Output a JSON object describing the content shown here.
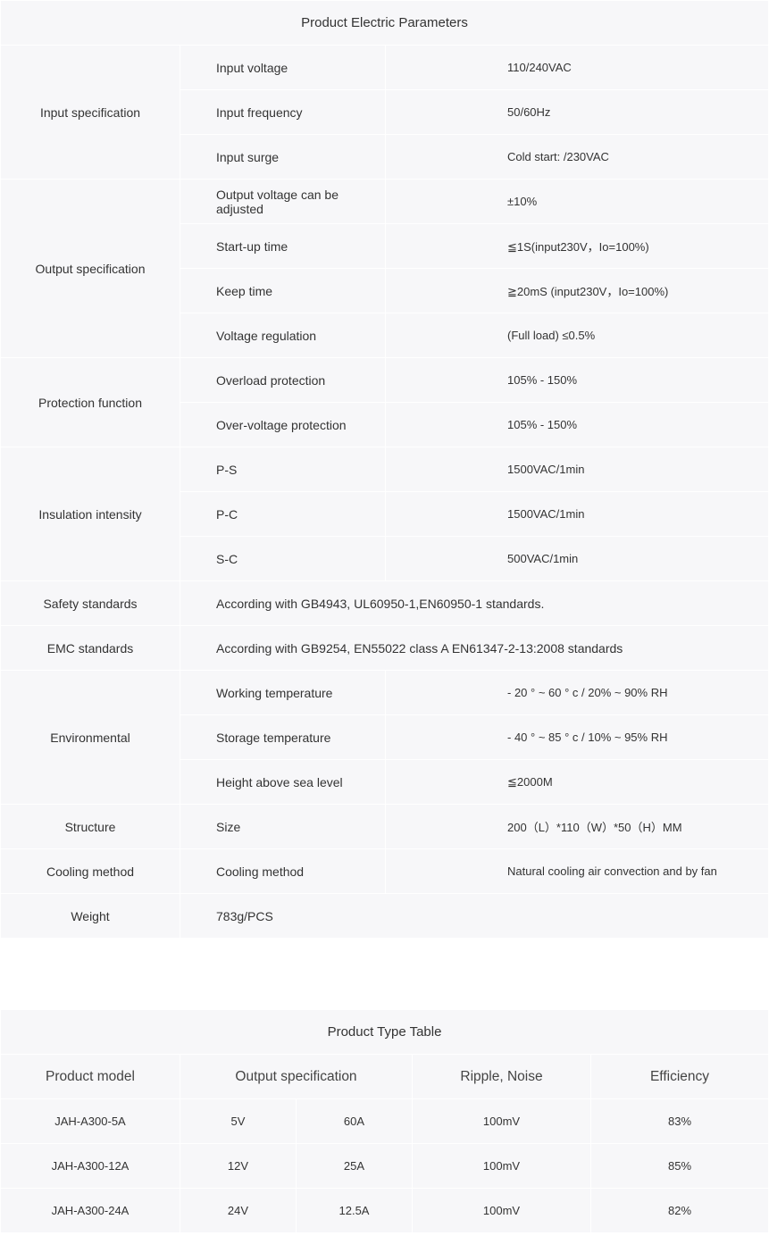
{
  "params": {
    "title": "Product Electric Parameters",
    "groups": [
      {
        "name": "Input specification",
        "rows": [
          [
            "Input voltage",
            "110/240VAC"
          ],
          [
            "Input frequency",
            "50/60Hz"
          ],
          [
            "Input surge",
            "Cold start: /230VAC"
          ]
        ]
      },
      {
        "name": "Output specification",
        "rows": [
          [
            "Output voltage can be adjusted",
            "±10%"
          ],
          [
            "Start-up time",
            "≦1S(input230V，Io=100%)"
          ],
          [
            "Keep time",
            "≧20mS (input230V，Io=100%)"
          ],
          [
            "Voltage regulation",
            "(Full load) ≤0.5%"
          ]
        ]
      },
      {
        "name": "Protection function",
        "rows": [
          [
            "Overload protection",
            "105% - 150%"
          ],
          [
            "Over-voltage protection",
            "105% - 150%"
          ]
        ]
      },
      {
        "name": "Insulation intensity",
        "rows": [
          [
            "P-S",
            "1500VAC/1min"
          ],
          [
            "P-C",
            "1500VAC/1min"
          ],
          [
            "S-C",
            "500VAC/1min"
          ]
        ]
      },
      {
        "name": "Safety standards",
        "full": "According with GB4943, UL60950-1,EN60950-1 standards."
      },
      {
        "name": "EMC standards",
        "full": "According with GB9254, EN55022 class A EN61347-2-13:2008 standards"
      },
      {
        "name": "Environmental",
        "rows": [
          [
            "Working temperature",
            "- 20 ° ~ 60 ° c / 20% ~ 90% RH"
          ],
          [
            "Storage temperature",
            "- 40 ° ~ 85 ° c / 10% ~ 95% RH"
          ],
          [
            "Height above sea level",
            "≦2000M"
          ]
        ]
      },
      {
        "name": "Structure",
        "rows": [
          [
            "Size",
            "200（L）*110（W）*50（H）MM"
          ]
        ]
      },
      {
        "name": "Cooling method",
        "rows": [
          [
            "Cooling method",
            "Natural cooling air convection and by fan"
          ]
        ]
      },
      {
        "name": "Weight",
        "full": "783g/PCS"
      }
    ]
  },
  "types": {
    "title": "Product Type Table",
    "headers": [
      "Product model",
      "Output specification",
      "Ripple, Noise",
      "Efficiency"
    ],
    "rows": [
      [
        "JAH-A300-5A",
        "5V",
        "60A",
        "100mV",
        "83%"
      ],
      [
        "JAH-A300-12A",
        "12V",
        "25A",
        "100mV",
        "85%"
      ],
      [
        "JAH-A300-24A",
        "24V",
        "12.5A",
        "100mV",
        "82%"
      ]
    ]
  }
}
